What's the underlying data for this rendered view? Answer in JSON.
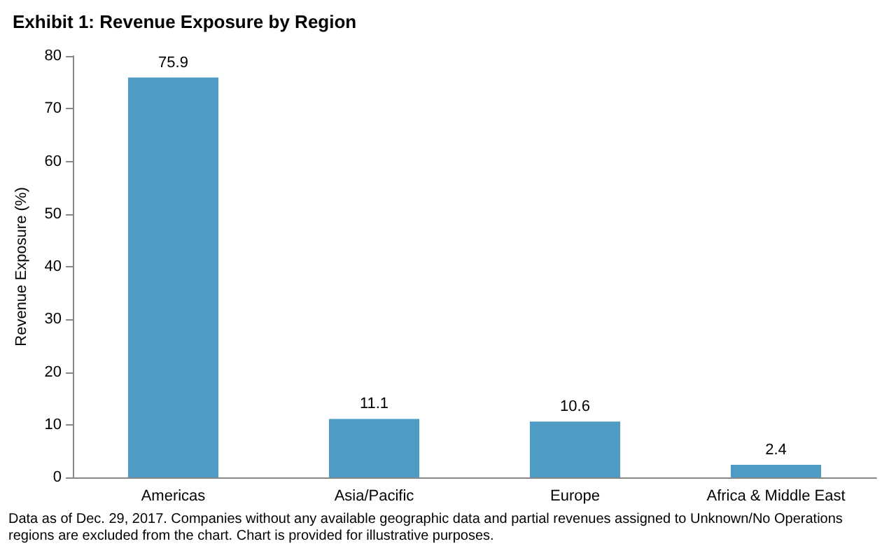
{
  "chart_data": {
    "type": "bar",
    "title": "Exhibit 1: Revenue Exposure by Region",
    "ylabel": "Revenue Exposure (%)",
    "categories": [
      "Americas",
      "Asia/Pacific",
      "Europe",
      "Africa & Middle East"
    ],
    "values": [
      75.9,
      11.1,
      10.6,
      2.4
    ],
    "color": "#4e9bc4",
    "ylim": [
      0,
      80
    ],
    "yticks": [
      0,
      10,
      20,
      30,
      40,
      50,
      60,
      70,
      80
    ],
    "grid": false,
    "data_labels": true,
    "annotations": [
      "Data as of Dec. 29, 2017. Companies without any available geographic data and partial revenues assigned to Unknown/No Operations regions are excluded from the chart. Chart is provided for illustrative purposes."
    ]
  }
}
